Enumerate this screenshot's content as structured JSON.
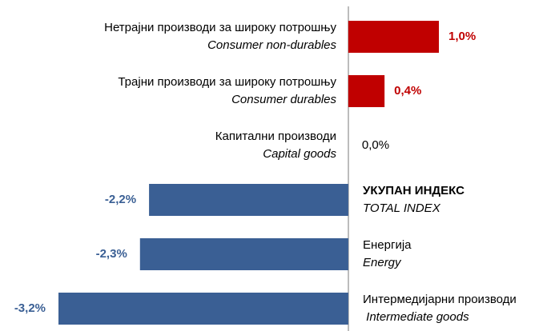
{
  "chart_data": {
    "type": "hbar",
    "categories": [
      [
        "Нетрајни производи за широку потрошњу",
        "Consumer non-durables"
      ],
      [
        "Трајни производи за широку потрошњу",
        "Consumer durables"
      ],
      [
        "Капитални производи",
        "Capital goods"
      ],
      [
        "УКУПАН ИНДЕКС",
        "TOTAL INDEX"
      ],
      [
        "Енергија",
        "Energy"
      ],
      [
        "Интермедијарни производи",
        " Intermediate goods"
      ]
    ],
    "values": [
      1.0,
      0.4,
      0.0,
      -2.2,
      -2.3,
      -3.2
    ],
    "value_labels": [
      "1,0%",
      "0,4%",
      "0,0%",
      "-2,2%",
      "-2,3%",
      "-3,2%"
    ],
    "positive_color": "#c00000",
    "negative_color": "#3a5f94"
  }
}
